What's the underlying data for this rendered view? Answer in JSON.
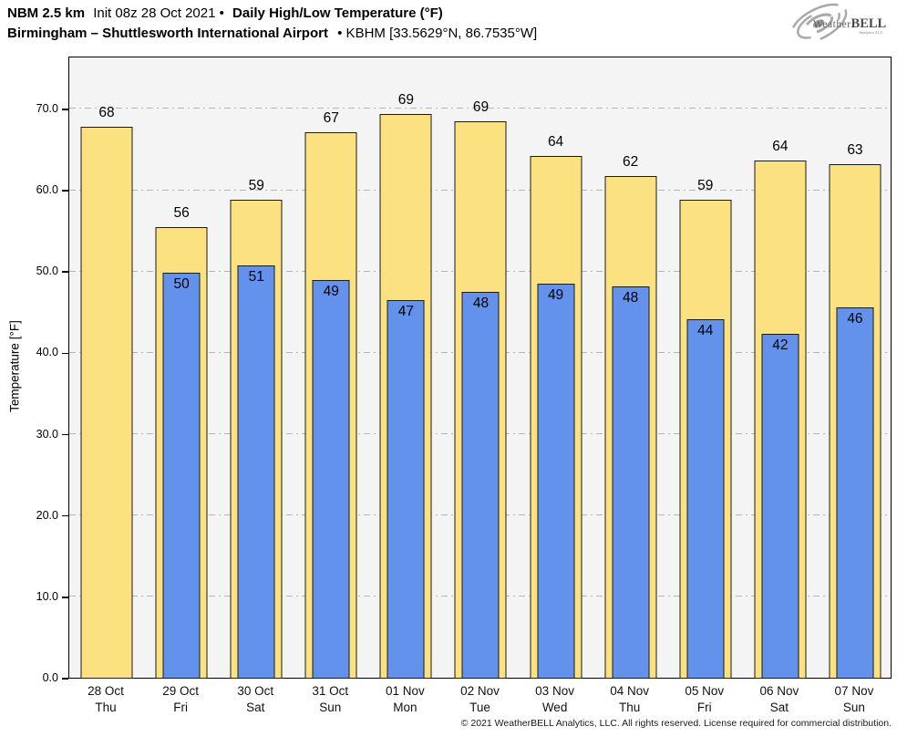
{
  "header": {
    "line1": {
      "bold1": "NBM 2.5 km",
      "regular": "Init 08z 28 Oct 2021 •",
      "bold2": "Daily High/Low Temperature (°F)"
    },
    "line2": {
      "bold": "Birmingham – Shuttlesworth International Airport",
      "regular": "• KBHM [33.5629°N, 86.7535°W]"
    }
  },
  "logo": {
    "name_part1": "Weather",
    "name_part2": "BELL",
    "subtitle": "Analytics LLC"
  },
  "chart_data": {
    "type": "bar",
    "title": "Daily High/Low Temperature (°F)",
    "ylabel": "Temperature [°F]",
    "ylim": [
      0,
      76.5
    ],
    "grid": "horizontal dash-dot every 10",
    "legend_position": "none",
    "yticks": [
      0,
      10,
      20,
      30,
      40,
      50,
      60,
      70
    ],
    "ytick_labels": [
      "0.0",
      "10.0",
      "20.0",
      "30.0",
      "40.0",
      "50.0",
      "60.0",
      "70.0"
    ],
    "categories": [
      {
        "date": "28 Oct",
        "day": "Thu"
      },
      {
        "date": "29 Oct",
        "day": "Fri"
      },
      {
        "date": "30 Oct",
        "day": "Sat"
      },
      {
        "date": "31 Oct",
        "day": "Sun"
      },
      {
        "date": "01 Nov",
        "day": "Mon"
      },
      {
        "date": "02 Nov",
        "day": "Tue"
      },
      {
        "date": "03 Nov",
        "day": "Wed"
      },
      {
        "date": "04 Nov",
        "day": "Thu"
      },
      {
        "date": "05 Nov",
        "day": "Fri"
      },
      {
        "date": "06 Nov",
        "day": "Sat"
      },
      {
        "date": "07 Nov",
        "day": "Sun"
      }
    ],
    "series": [
      {
        "name": "Daily High",
        "color": "#FCE180",
        "values": [
          67.9,
          55.5,
          58.9,
          67.2,
          69.4,
          68.5,
          64.3,
          61.8,
          58.9,
          63.7,
          63.3
        ],
        "labels": [
          "68",
          "56",
          "59",
          "67",
          "69",
          "69",
          "64",
          "62",
          "59",
          "64",
          "63"
        ]
      },
      {
        "name": "Daily Low",
        "color": "#6292EB",
        "values": [
          null,
          49.9,
          50.8,
          49.0,
          46.6,
          47.6,
          48.6,
          48.2,
          44.2,
          42.4,
          45.6
        ],
        "labels": [
          null,
          "50",
          "51",
          "49",
          "47",
          "48",
          "49",
          "48",
          "44",
          "42",
          "46"
        ]
      }
    ]
  },
  "colors": {
    "high_bar": "#FCE180",
    "low_bar": "#6292EB",
    "bar_outline": "#1a1a1a",
    "plot_background": "#f4f4f4",
    "gridline": "#b5b5b5"
  },
  "footer": {
    "copyright": "© 2021 WeatherBELL Analytics, LLC. All rights reserved. License required for commercial distribution."
  }
}
